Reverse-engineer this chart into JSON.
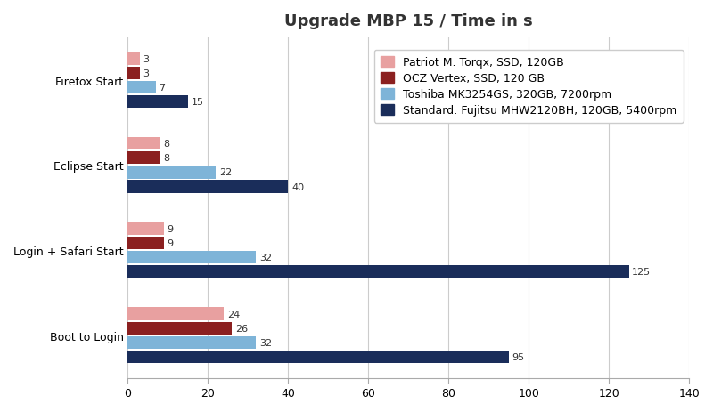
{
  "title": "Upgrade MBP 15 / Time in s",
  "categories": [
    "Boot to Login",
    "Login + Safari Start",
    "Eclipse Start",
    "Firefox Start"
  ],
  "series": [
    {
      "label": "Patriot M. Torqx, SSD, 120GB",
      "color": "#E8A0A0",
      "values": [
        24,
        9,
        8,
        3
      ]
    },
    {
      "label": "OCZ Vertex, SSD, 120 GB",
      "color": "#8B2020",
      "values": [
        26,
        9,
        8,
        3
      ]
    },
    {
      "label": "Toshiba MK3254GS, 320GB, 7200rpm",
      "color": "#7EB4D8",
      "values": [
        32,
        32,
        22,
        7
      ]
    },
    {
      "label": "Standard: Fujitsu MHW2120BH, 120GB, 5400rpm",
      "color": "#1A2D5A",
      "values": [
        95,
        125,
        40,
        15
      ]
    }
  ],
  "xlim": [
    0,
    140
  ],
  "xticks": [
    0,
    20,
    40,
    60,
    80,
    100,
    120,
    140
  ],
  "background_color": "#FFFFFF",
  "plot_background_color": "#FFFFFF",
  "grid_color": "#CCCCCC",
  "bar_height": 0.15,
  "bar_spacing": 0.02,
  "group_padding": 0.35,
  "title_fontsize": 13,
  "label_fontsize": 9,
  "tick_fontsize": 9,
  "legend_fontsize": 9,
  "value_fontsize": 8
}
